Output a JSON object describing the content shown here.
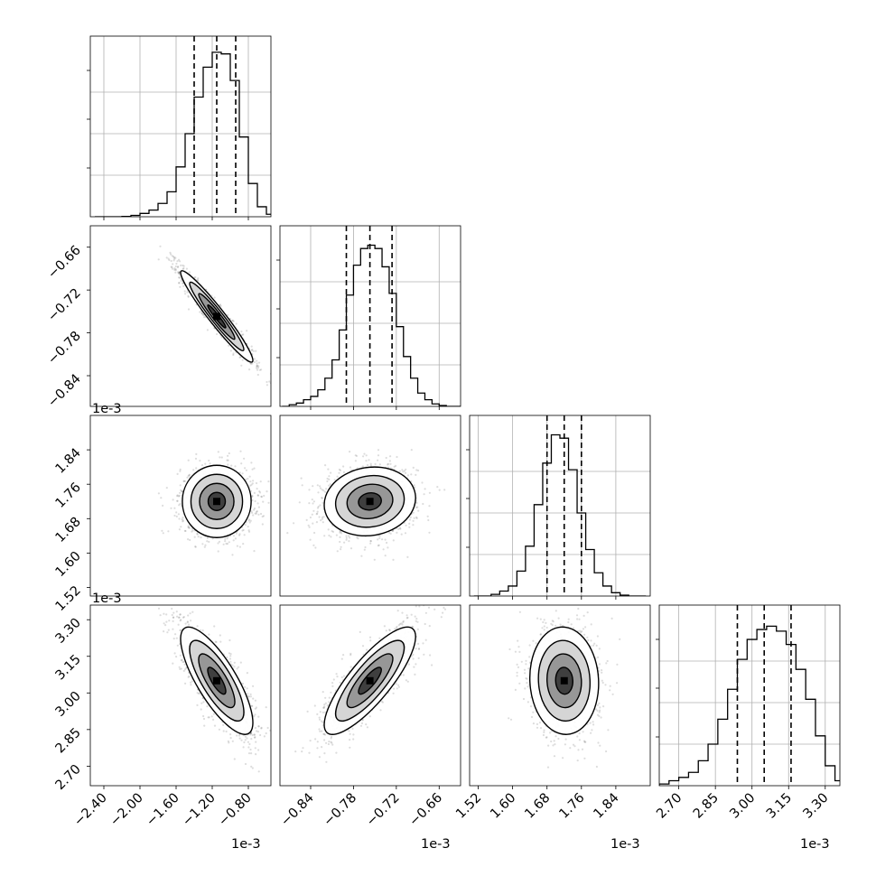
{
  "chart_data": [
    {
      "type": "histogram",
      "panel": "row1-col1",
      "x_multiplier": "1e-3",
      "x_range": [
        -2.55,
        -0.55
      ],
      "x_ticks": [
        -2.4,
        -2.0,
        -1.6,
        -1.2,
        -0.8
      ],
      "bins_x": [
        -2.5,
        -2.4,
        -2.3,
        -2.2,
        -2.1,
        -2.0,
        -1.9,
        -1.8,
        -1.7,
        -1.6,
        -1.5,
        -1.4,
        -1.3,
        -1.2,
        -1.1,
        -1.0,
        -0.9,
        -0.8,
        -0.7,
        -0.6
      ],
      "heights": [
        0,
        0,
        0,
        0.002,
        0.008,
        0.02,
        0.04,
        0.08,
        0.15,
        0.3,
        0.5,
        0.72,
        0.9,
        0.99,
        0.98,
        0.82,
        0.48,
        0.2,
        0.06,
        0.015
      ],
      "quantiles": [
        -1.4,
        -1.15,
        -0.94
      ]
    },
    {
      "type": "histogram",
      "panel": "row2-col2",
      "x_multiplier": "1e-3",
      "x_range": [
        -0.883,
        -0.63
      ],
      "x_ticks": [
        -0.84,
        -0.78,
        -0.72,
        -0.66
      ],
      "bins_x": [
        -0.88,
        -0.87,
        -0.86,
        -0.85,
        -0.84,
        -0.83,
        -0.82,
        -0.81,
        -0.8,
        -0.79,
        -0.78,
        -0.77,
        -0.76,
        -0.75,
        -0.74,
        -0.73,
        -0.72,
        -0.71,
        -0.7,
        -0.69,
        -0.68,
        -0.67,
        -0.66,
        -0.65,
        -0.64
      ],
      "heights": [
        0,
        0.01,
        0.02,
        0.04,
        0.06,
        0.1,
        0.17,
        0.28,
        0.46,
        0.67,
        0.85,
        0.95,
        0.97,
        0.95,
        0.84,
        0.68,
        0.48,
        0.3,
        0.17,
        0.08,
        0.04,
        0.015,
        0.005,
        0,
        0
      ],
      "quantiles": [
        -0.79,
        -0.757,
        -0.726
      ]
    },
    {
      "type": "histogram",
      "panel": "row3-col3",
      "x_multiplier": "1e-3",
      "x_range": [
        1.5,
        1.92
      ],
      "x_ticks": [
        1.52,
        1.6,
        1.68,
        1.76,
        1.84
      ],
      "bins_x": [
        1.51,
        1.53,
        1.55,
        1.57,
        1.59,
        1.61,
        1.63,
        1.65,
        1.67,
        1.69,
        1.71,
        1.73,
        1.75,
        1.77,
        1.79,
        1.81,
        1.83,
        1.85,
        1.87,
        1.89
      ],
      "heights": [
        0,
        0,
        0.01,
        0.03,
        0.06,
        0.15,
        0.3,
        0.55,
        0.8,
        0.97,
        0.95,
        0.76,
        0.5,
        0.28,
        0.14,
        0.06,
        0.02,
        0.005,
        0,
        0
      ],
      "quantiles": [
        1.68,
        1.72,
        1.76
      ]
    },
    {
      "type": "histogram",
      "panel": "row4-col4",
      "x_multiplier": "1e-3",
      "x_range": [
        2.62,
        3.36
      ],
      "x_ticks": [
        2.7,
        2.85,
        3.0,
        3.15,
        3.3
      ],
      "bins_x": [
        2.62,
        2.66,
        2.7,
        2.74,
        2.78,
        2.82,
        2.86,
        2.9,
        2.94,
        2.98,
        3.02,
        3.06,
        3.1,
        3.14,
        3.18,
        3.22,
        3.26,
        3.3,
        3.34
      ],
      "heights": [
        0.01,
        0.03,
        0.05,
        0.08,
        0.15,
        0.25,
        0.4,
        0.58,
        0.76,
        0.88,
        0.94,
        0.96,
        0.93,
        0.85,
        0.7,
        0.52,
        0.3,
        0.12,
        0.03
      ],
      "quantiles": [
        2.94,
        3.05,
        3.16
      ]
    },
    {
      "type": "scatter-contour",
      "panel": "row2-col1",
      "x_range": [
        -2.55,
        -0.55
      ],
      "y_range": [
        -0.883,
        -0.63
      ],
      "x_mean": -1.15,
      "x_std": 0.2,
      "y_mean": -0.757,
      "y_std": 0.032,
      "correlation": -0.96,
      "x_ticks": [],
      "y_ticks": [
        -0.66,
        -0.72,
        -0.78,
        -0.84
      ],
      "y_multiplier": "1e-3"
    },
    {
      "type": "scatter-contour",
      "panel": "row3-col1",
      "x_range": [
        -2.55,
        -0.55
      ],
      "y_range": [
        1.5,
        1.92
      ],
      "x_mean": -1.15,
      "x_std": 0.2,
      "y_mean": 1.72,
      "y_std": 0.04,
      "correlation": 0.0,
      "x_ticks": [],
      "y_ticks": [
        1.84,
        1.76,
        1.68,
        1.6,
        1.52
      ],
      "y_multiplier": "1e-3"
    },
    {
      "type": "scatter-contour",
      "panel": "row3-col2",
      "x_range": [
        -0.883,
        -0.63
      ],
      "y_range": [
        1.5,
        1.92
      ],
      "x_mean": -0.757,
      "x_std": 0.032,
      "y_mean": 1.72,
      "y_std": 0.04,
      "correlation": 0.1,
      "x_ticks": [],
      "y_ticks": []
    },
    {
      "type": "scatter-contour",
      "panel": "row4-col1",
      "x_range": [
        -2.55,
        -0.55
      ],
      "y_range": [
        2.62,
        3.36
      ],
      "x_mean": -1.15,
      "x_std": 0.2,
      "y_mean": 3.05,
      "y_std": 0.11,
      "correlation": -0.78,
      "x_ticks": [
        -2.4,
        -2.0,
        -1.6,
        -1.2,
        -0.8
      ],
      "y_ticks": [
        3.3,
        3.15,
        3.0,
        2.85,
        2.7
      ]
    },
    {
      "type": "scatter-contour",
      "panel": "row4-col2",
      "x_range": [
        -0.883,
        -0.63
      ],
      "y_range": [
        2.62,
        3.36
      ],
      "x_mean": -0.757,
      "x_std": 0.032,
      "y_mean": 3.05,
      "y_std": 0.11,
      "correlation": 0.82,
      "x_ticks": [
        -0.84,
        -0.78,
        -0.72,
        -0.66
      ],
      "y_ticks": []
    },
    {
      "type": "scatter-contour",
      "panel": "row4-col3",
      "x_range": [
        1.5,
        1.92
      ],
      "y_range": [
        2.62,
        3.36
      ],
      "x_mean": 1.72,
      "x_std": 0.04,
      "y_mean": 3.05,
      "y_std": 0.11,
      "correlation": -0.05,
      "x_ticks": [
        1.52,
        1.6,
        1.68,
        1.76,
        1.84
      ],
      "y_ticks": []
    }
  ],
  "labels": {
    "x_mult_col1": "1e-3",
    "x_mult_col2": "1e-3",
    "x_mult_col3": "1e-3",
    "x_mult_col4": "1e-3",
    "y_mult_row2": "1e-3",
    "y_mult_row3": "1e-3"
  }
}
